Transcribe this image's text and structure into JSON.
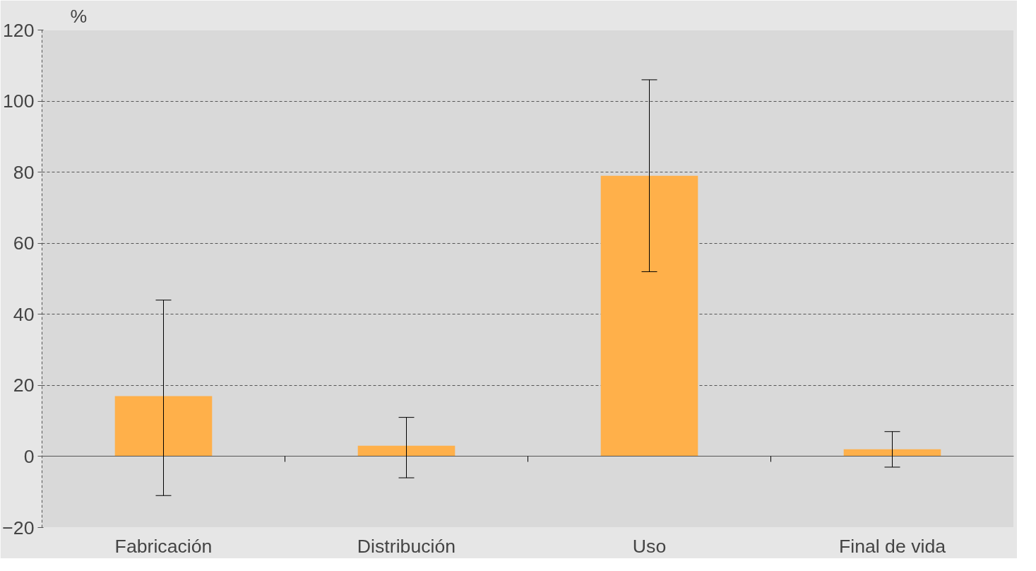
{
  "chart_data": {
    "type": "bar",
    "ylabel": "%",
    "categories": [
      "Fabricación",
      "Distribución",
      "Uso",
      "Final de vida"
    ],
    "values": [
      17,
      3,
      79,
      2
    ],
    "errors": [
      [
        -11,
        44
      ],
      [
        -6,
        11
      ],
      [
        52,
        106
      ],
      [
        -3,
        7
      ]
    ],
    "color": "#ffb04a",
    "ylim": [
      -20,
      120
    ],
    "yticks": [
      -20,
      0,
      20,
      40,
      60,
      80,
      100,
      120
    ],
    "grid": "y"
  }
}
